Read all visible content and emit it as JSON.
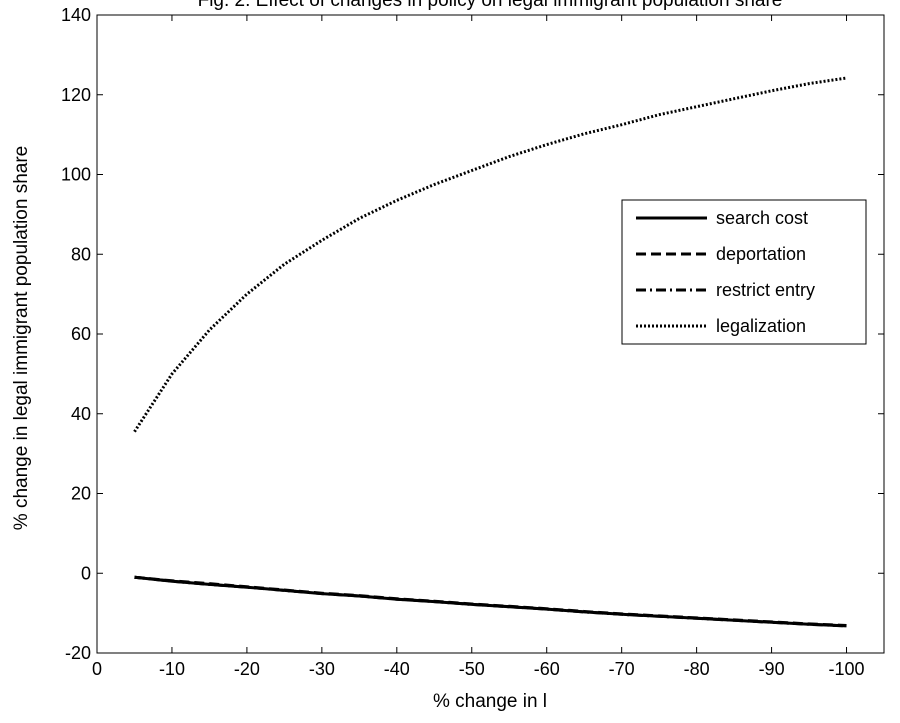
{
  "chart_data": {
    "type": "line",
    "title": "Fig. 2: Effect of changes in policy on legal immigrant population share",
    "xlabel": "% change in l",
    "ylabel": "% change in legal immigrant population share",
    "xlim": [
      0,
      -105
    ],
    "ylim": [
      -20,
      140
    ],
    "xticks": [
      0,
      -10,
      -20,
      -30,
      -40,
      -50,
      -60,
      -70,
      -80,
      -90,
      -100
    ],
    "xtick_labels": [
      "0",
      "-10",
      "-20",
      "-30",
      "-40",
      "-50",
      "-60",
      "-70",
      "-80",
      "-90",
      "-100"
    ],
    "yticks": [
      -20,
      0,
      20,
      40,
      60,
      80,
      100,
      120,
      140
    ],
    "ytick_labels": [
      "-20",
      "0",
      "20",
      "40",
      "60",
      "80",
      "100",
      "120",
      "140"
    ],
    "grid": false,
    "legend_position": "right",
    "x": [
      -5,
      -10,
      -15,
      -20,
      -25,
      -30,
      -35,
      -40,
      -45,
      -50,
      -55,
      -60,
      -65,
      -70,
      -75,
      -80,
      -85,
      -90,
      -95,
      -100
    ],
    "series": [
      {
        "name": "search cost",
        "style": "solid",
        "values": [
          -1,
          -2,
          -2.8,
          -3.5,
          -4.3,
          -5.1,
          -5.7,
          -6.5,
          -7.1,
          -7.8,
          -8.4,
          -9,
          -9.7,
          -10.3,
          -10.8,
          -11.3,
          -11.8,
          -12.3,
          -12.8,
          -13.2
        ]
      },
      {
        "name": "deportation",
        "style": "dashed",
        "values": [
          -1,
          -1.9,
          -2.6,
          -3.4,
          -4.2,
          -5,
          -5.6,
          -6.4,
          -7,
          -7.7,
          -8.3,
          -8.9,
          -9.6,
          -10.2,
          -10.7,
          -11.2,
          -11.7,
          -12.2,
          -12.7,
          -13.1
        ]
      },
      {
        "name": "restrict entry",
        "style": "dashdot",
        "values": [
          -1,
          -2,
          -2.8,
          -3.5,
          -4.3,
          -5.1,
          -5.7,
          -6.5,
          -7.1,
          -7.8,
          -8.4,
          -9,
          -9.7,
          -10.3,
          -10.8,
          -11.3,
          -11.8,
          -12.3,
          -12.8,
          -13.2
        ]
      },
      {
        "name": "legalization",
        "style": "dotted",
        "values": [
          35.5,
          50,
          61,
          70,
          77.5,
          83.5,
          89,
          93.5,
          97.5,
          101,
          104.5,
          107.5,
          110.2,
          112.5,
          115,
          117,
          119,
          121,
          122.8,
          124.2
        ]
      }
    ]
  }
}
